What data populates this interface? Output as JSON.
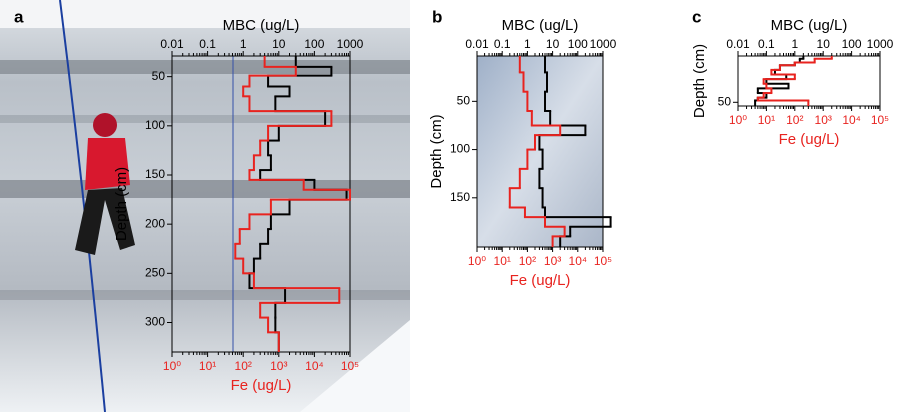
{
  "chart_data": [
    {
      "type": "step",
      "panel": "a",
      "x_label": "MBC (ug/L)",
      "x2_label": "Fe (ug/L)",
      "y_label": "Depth (cm)",
      "log_x": true,
      "y_inverted": true,
      "xlim": [
        0.01,
        1000
      ],
      "xticks": [
        0.01,
        0.1,
        1,
        10,
        100,
        1000
      ],
      "x2lim": [
        1,
        100000
      ],
      "x2ticks": [
        {
          "value": 1,
          "label": "10⁰"
        },
        {
          "value": 10,
          "label": "10¹"
        },
        {
          "value": 100,
          "label": "10²"
        },
        {
          "value": 1000,
          "label": "10³"
        },
        {
          "value": 10000,
          "label": "10⁴"
        },
        {
          "value": 100000,
          "label": "10⁵"
        }
      ],
      "ylim": [
        29,
        330
      ],
      "yticks": [
        50,
        100,
        150,
        200,
        250,
        300
      ],
      "depth_bins": [
        29,
        40,
        49,
        60,
        70,
        85,
        100,
        115,
        130,
        145,
        155,
        165,
        175,
        190,
        205,
        220,
        235,
        250,
        265,
        280,
        295,
        310,
        330
      ],
      "series": [
        {
          "color": "#000000",
          "axis": "x",
          "values": [
            30,
            300,
            5,
            20,
            8,
            200,
            10,
            5,
            6,
            3,
            100,
            800,
            20,
            6,
            5,
            3,
            2,
            1.5,
            15,
            8,
            8,
            10
          ]
        },
        {
          "color": "#e8231f",
          "axis": "x2",
          "values": [
            400,
            3000,
            150,
            100,
            150,
            30000,
            500,
            300,
            200,
            150,
            5000,
            100000,
            600,
            150,
            80,
            60,
            100,
            200,
            50000,
            300,
            500,
            1000
          ]
        }
      ]
    },
    {
      "type": "step",
      "panel": "b",
      "x_label": "MBC (ug/L)",
      "x2_label": "Fe (ug/L)",
      "y_label": "Depth (cm)",
      "log_x": true,
      "y_inverted": true,
      "xlim": [
        0.01,
        1000
      ],
      "xticks": [
        0.01,
        0.1,
        1,
        10,
        100,
        1000
      ],
      "x2lim": [
        1,
        100000
      ],
      "x2ticks": [
        {
          "value": 1,
          "label": "10⁰"
        },
        {
          "value": 10,
          "label": "10¹"
        },
        {
          "value": 100,
          "label": "10²"
        },
        {
          "value": 1000,
          "label": "10³"
        },
        {
          "value": 10000,
          "label": "10⁴"
        },
        {
          "value": 100000,
          "label": "10⁵"
        }
      ],
      "ylim": [
        3,
        201
      ],
      "yticks": [
        50,
        100,
        150
      ],
      "depth_bins": [
        3,
        20,
        40,
        60,
        75,
        85,
        100,
        120,
        140,
        160,
        170,
        180,
        190,
        201
      ],
      "series": [
        {
          "color": "#000000",
          "axis": "x",
          "values": [
            5,
            6,
            5,
            8,
            200,
            3,
            4,
            3,
            4,
            5,
            2000,
            50,
            20
          ]
        },
        {
          "color": "#e8231f",
          "axis": "x2",
          "values": [
            50,
            70,
            100,
            150,
            2000,
            200,
            100,
            50,
            20,
            80,
            500,
            3000,
            1000
          ]
        }
      ]
    },
    {
      "type": "step",
      "panel": "c",
      "x_label": "MBC (ug/L)",
      "x2_label": "Fe (ug/L)",
      "y_label": "Depth (cm)",
      "log_x": true,
      "y_inverted": true,
      "xlim": [
        0.01,
        1000
      ],
      "xticks": [
        0.01,
        0.1,
        1,
        10,
        100,
        1000
      ],
      "x2lim": [
        1,
        100000
      ],
      "x2ticks": [
        {
          "value": 1,
          "label": "10⁰"
        },
        {
          "value": 10,
          "label": "10¹"
        },
        {
          "value": 100,
          "label": "10²"
        },
        {
          "value": 1000,
          "label": "10³"
        },
        {
          "value": 10000,
          "label": "10⁴"
        },
        {
          "value": 100000,
          "label": "10⁵"
        }
      ],
      "ylim": [
        0,
        54
      ],
      "yticks": [
        50
      ],
      "depth_bins": [
        0,
        3,
        7,
        10,
        15,
        20,
        25,
        30,
        35,
        40,
        45,
        48,
        54
      ],
      "series": [
        {
          "color": "#000000",
          "axis": "x",
          "values": [
            2,
            1.5,
            1,
            0.3,
            0.2,
            0.5,
            0.1,
            0.6,
            0.05,
            0.1,
            0.05,
            0.04
          ]
        },
        {
          "color": "#e8231f",
          "axis": "x2",
          "values": [
            2000,
            500,
            100,
            30,
            15,
            100,
            8,
            10,
            15,
            8,
            5,
            300
          ]
        }
      ]
    }
  ]
}
